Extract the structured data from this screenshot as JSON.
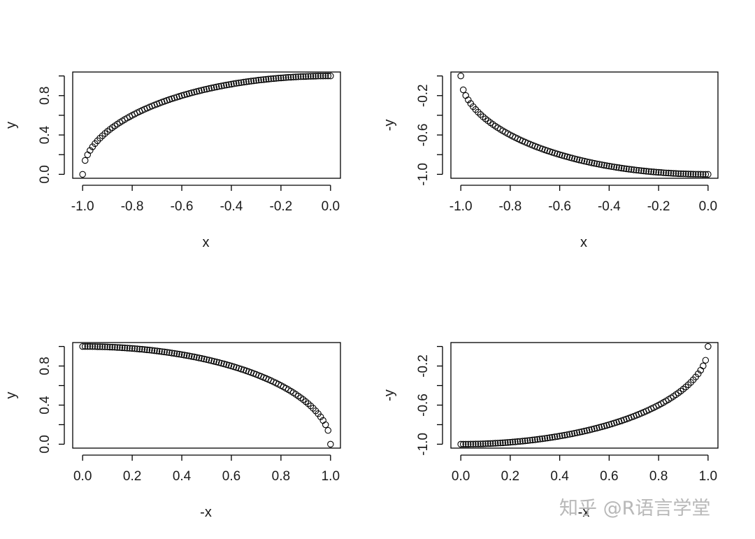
{
  "chart_data": [
    {
      "type": "scatter",
      "title": "",
      "xlabel": "x",
      "ylabel": "y",
      "xlim": [
        -1.04,
        0.04
      ],
      "ylim": [
        -0.04,
        1.04
      ],
      "xticks": [
        -1.0,
        -0.8,
        -0.6,
        -0.4,
        -0.2,
        0.0
      ],
      "yticks": [
        0.0,
        0.4,
        0.8
      ],
      "xtick_labels": [
        "-1.0",
        "-0.8",
        "-0.6",
        "-0.4",
        "-0.2",
        "0.0"
      ],
      "ytick_labels": [
        "0.0",
        "0.4",
        "0.8"
      ],
      "function": "y = sqrt(1 - x^2)",
      "x_range": [
        -1.0,
        0.0
      ],
      "n_points": 101,
      "sample_points": [
        [
          -1.0,
          0.0
        ],
        [
          -0.99,
          0.141
        ],
        [
          -0.9,
          0.436
        ],
        [
          -0.8,
          0.6
        ],
        [
          -0.6,
          0.8
        ],
        [
          -0.4,
          0.917
        ],
        [
          -0.2,
          0.98
        ],
        [
          0.0,
          1.0
        ]
      ],
      "marker": "open-circle",
      "grid": false
    },
    {
      "type": "scatter",
      "title": "",
      "xlabel": "x",
      "ylabel": "-y",
      "xlim": [
        -1.04,
        0.04
      ],
      "ylim": [
        -1.04,
        0.04
      ],
      "xticks": [
        -1.0,
        -0.8,
        -0.6,
        -0.4,
        -0.2,
        0.0
      ],
      "yticks": [
        -1.0,
        -0.6,
        -0.2
      ],
      "xtick_labels": [
        "-1.0",
        "-0.8",
        "-0.6",
        "-0.4",
        "-0.2",
        "0.0"
      ],
      "ytick_labels": [
        "-1.0",
        "-0.6",
        "-0.2"
      ],
      "function": "y = -sqrt(1 - x^2)",
      "x_range": [
        -1.0,
        0.0
      ],
      "n_points": 101,
      "sample_points": [
        [
          -1.0,
          0.0
        ],
        [
          -0.99,
          -0.141
        ],
        [
          -0.9,
          -0.436
        ],
        [
          -0.8,
          -0.6
        ],
        [
          -0.6,
          -0.8
        ],
        [
          -0.4,
          -0.917
        ],
        [
          -0.2,
          -0.98
        ],
        [
          0.0,
          -1.0
        ]
      ],
      "marker": "open-circle",
      "grid": false
    },
    {
      "type": "scatter",
      "title": "",
      "xlabel": "-x",
      "ylabel": "y",
      "xlim": [
        -0.04,
        1.04
      ],
      "ylim": [
        -0.04,
        1.04
      ],
      "xticks": [
        0.0,
        0.2,
        0.4,
        0.6,
        0.8,
        1.0
      ],
      "yticks": [
        0.0,
        0.4,
        0.8
      ],
      "xtick_labels": [
        "0.0",
        "0.2",
        "0.4",
        "0.6",
        "0.8",
        "1.0"
      ],
      "ytick_labels": [
        "0.0",
        "0.4",
        "0.8"
      ],
      "function": "y = sqrt(1 - x^2)",
      "x_range": [
        0.0,
        1.0
      ],
      "n_points": 101,
      "sample_points": [
        [
          0.0,
          1.0
        ],
        [
          0.2,
          0.98
        ],
        [
          0.4,
          0.917
        ],
        [
          0.6,
          0.8
        ],
        [
          0.8,
          0.6
        ],
        [
          0.9,
          0.436
        ],
        [
          0.99,
          0.141
        ],
        [
          1.0,
          0.0
        ]
      ],
      "marker": "open-circle",
      "grid": false
    },
    {
      "type": "scatter",
      "title": "",
      "xlabel": "-x",
      "ylabel": "-y",
      "xlim": [
        -0.04,
        1.04
      ],
      "ylim": [
        -1.04,
        0.04
      ],
      "xticks": [
        0.0,
        0.2,
        0.4,
        0.6,
        0.8,
        1.0
      ],
      "yticks": [
        -1.0,
        -0.6,
        -0.2
      ],
      "xtick_labels": [
        "0.0",
        "0.2",
        "0.4",
        "0.6",
        "0.8",
        "1.0"
      ],
      "ytick_labels": [
        "-1.0",
        "-0.6",
        "-0.2"
      ],
      "function": "y = -sqrt(1 - x^2)",
      "x_range": [
        0.0,
        1.0
      ],
      "n_points": 101,
      "sample_points": [
        [
          0.0,
          -1.0
        ],
        [
          0.2,
          -0.98
        ],
        [
          0.4,
          -0.917
        ],
        [
          0.6,
          -0.8
        ],
        [
          0.8,
          -0.6
        ],
        [
          0.9,
          -0.436
        ],
        [
          0.99,
          -0.141
        ],
        [
          1.0,
          0.0
        ]
      ],
      "marker": "open-circle",
      "grid": false
    }
  ],
  "watermark": {
    "text": "知乎 @R语言学堂"
  },
  "colors": {
    "background": "#ffffff",
    "axis": "#000000",
    "marker_stroke": "#000000",
    "watermark": "#b8b8b8"
  }
}
